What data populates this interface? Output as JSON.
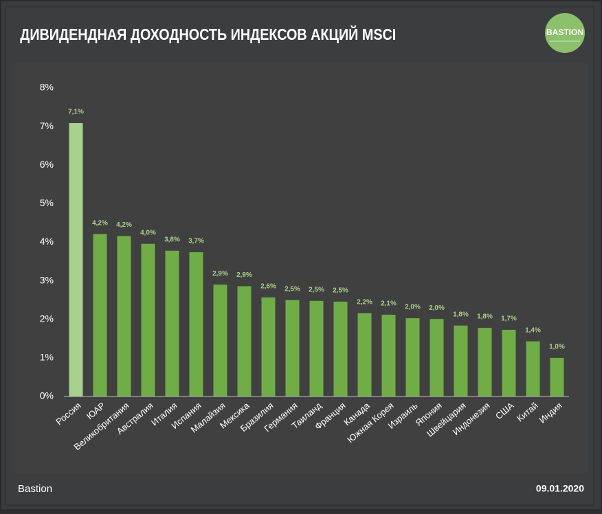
{
  "logo": "BASTION",
  "footer": {
    "source": "Bastion",
    "date": "09.01.2020"
  },
  "chart_data": {
    "type": "bar",
    "title": "ДИВИДЕНДНАЯ ДОХОДНОСТЬ ИНДЕКСОВ АКЦИЙ MSCI",
    "categories": [
      "Россия",
      "ЮАР",
      "Великобритания",
      "Австралия",
      "Италия",
      "Испания",
      "Малайзия",
      "Мексика",
      "Бразилия",
      "Германия",
      "Таиланд",
      "Франция",
      "Канада",
      "Южная Корея",
      "Израиль",
      "Япония",
      "Швейцария",
      "Индонезия",
      "США",
      "Китай",
      "Индия"
    ],
    "values": [
      7.09,
      4.21,
      4.16,
      3.96,
      3.78,
      3.74,
      2.9,
      2.86,
      2.57,
      2.5,
      2.48,
      2.46,
      2.16,
      2.12,
      2.03,
      2.01,
      1.84,
      1.78,
      1.73,
      1.43,
      1.0
    ],
    "value_labels": [
      "7,1%",
      "4,2%",
      "4,2%",
      "4,0%",
      "3,8%",
      "3,7%",
      "2,9%",
      "2,9%",
      "2,6%",
      "2,5%",
      "2,5%",
      "2,5%",
      "2,2%",
      "2,1%",
      "2,0%",
      "2,0%",
      "1,8%",
      "1,8%",
      "1,7%",
      "1,4%",
      "1,0%"
    ],
    "colors": [
      "#a9d18e",
      "#70ad47",
      "#70ad47",
      "#70ad47",
      "#70ad47",
      "#70ad47",
      "#70ad47",
      "#70ad47",
      "#70ad47",
      "#70ad47",
      "#70ad47",
      "#70ad47",
      "#70ad47",
      "#70ad47",
      "#70ad47",
      "#70ad47",
      "#70ad47",
      "#70ad47",
      "#70ad47",
      "#70ad47",
      "#70ad47"
    ],
    "ylim": [
      0,
      8
    ],
    "yticks": [
      {
        "value": 0,
        "label": "0%"
      },
      {
        "value": 1,
        "label": "1%"
      },
      {
        "value": 2,
        "label": "2%"
      },
      {
        "value": 3,
        "label": "3%"
      },
      {
        "value": 4,
        "label": "4%"
      },
      {
        "value": 5,
        "label": "5%"
      },
      {
        "value": 6,
        "label": "6%"
      },
      {
        "value": 7,
        "label": "7%"
      },
      {
        "value": 8,
        "label": "8%"
      }
    ],
    "grid": false
  }
}
